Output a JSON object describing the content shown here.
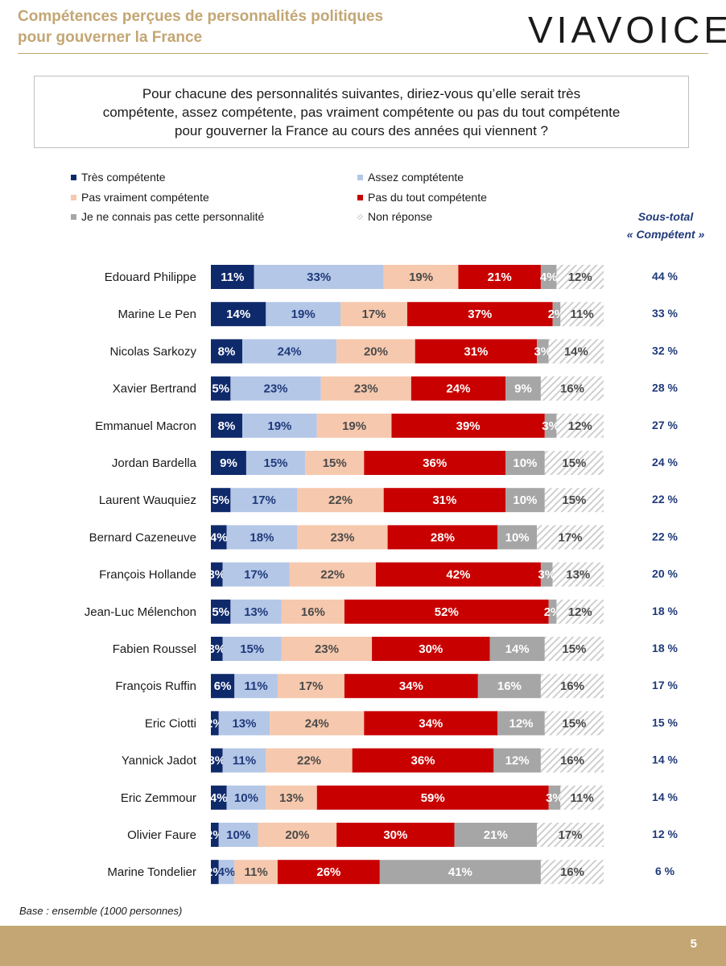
{
  "header": {
    "title_line1": "Compétences perçues de personnalités politiques",
    "title_line2": "pour gouverner la France",
    "logo_text": "VIAVOICE"
  },
  "question": {
    "line1": "Pour chacune des personnalités suivantes, diriez-vous qu’elle serait très",
    "line2": "compétente, assez compétente, pas vraiment compétente ou pas du tout compétente",
    "line3": "pour gouverner la France au cours des années qui viennent ?"
  },
  "subtotal_header": {
    "line1": "Sous-total",
    "line2": "« Compétent »"
  },
  "footer": {
    "base_note": "Base : ensemble (1000 personnes)",
    "page_number": "5"
  },
  "colors": {
    "tres": "#0f2a6b",
    "assez": "#b4c7e7",
    "pas_vraiment": "#f6c8ad",
    "pas_du_tout": "#c80000",
    "inconnu": "#a6a6a6",
    "non_reponse_hatch": "#c8c8c8",
    "accent_gold": "#c3a673",
    "subtotal_blue": "#1f3a7a"
  },
  "chart_data": {
    "type": "bar",
    "orientation": "horizontal",
    "stacked": true,
    "legend": [
      {
        "name": "Très compétente",
        "color": "#0f2a6b"
      },
      {
        "name": "Assez comptétente",
        "color": "#b4c7e7"
      },
      {
        "name": "Pas vraiment compétente",
        "color": "#f6c8ad"
      },
      {
        "name": "Pas du tout compétente",
        "color": "#c80000"
      },
      {
        "name": "Je ne connais pas cette personnalité",
        "color": "#a6a6a6"
      },
      {
        "name": "Non réponse",
        "color": "hatched"
      }
    ],
    "categories": [
      "Edouard Philippe",
      "Marine Le Pen",
      "Nicolas Sarkozy",
      "Xavier Bertrand",
      "Emmanuel Macron",
      "Jordan Bardella",
      "Laurent Wauquiez",
      "Bernard Cazeneuve",
      "François Hollande",
      "Jean-Luc Mélenchon",
      "Fabien Roussel",
      "François Ruffin",
      "Eric Ciotti",
      "Yannick Jadot",
      "Eric Zemmour",
      "Olivier Faure",
      "Marine Tondelier"
    ],
    "series": [
      {
        "name": "Très compétente",
        "values": [
          11,
          14,
          8,
          5,
          8,
          9,
          5,
          4,
          3,
          5,
          3,
          6,
          2,
          3,
          4,
          2,
          2
        ]
      },
      {
        "name": "Assez comptétente",
        "values": [
          33,
          19,
          24,
          23,
          19,
          15,
          17,
          18,
          17,
          13,
          15,
          11,
          13,
          11,
          10,
          10,
          4
        ]
      },
      {
        "name": "Pas vraiment compétente",
        "values": [
          19,
          17,
          20,
          23,
          19,
          15,
          22,
          23,
          22,
          16,
          23,
          17,
          24,
          22,
          13,
          20,
          11
        ]
      },
      {
        "name": "Pas du tout compétente",
        "values": [
          21,
          37,
          31,
          24,
          39,
          36,
          31,
          28,
          42,
          52,
          30,
          34,
          34,
          36,
          59,
          30,
          26
        ]
      },
      {
        "name": "Je ne connais pas cette personnalité",
        "values": [
          4,
          2,
          3,
          9,
          3,
          10,
          10,
          10,
          3,
          2,
          14,
          16,
          12,
          12,
          3,
          21,
          41
        ]
      },
      {
        "name": "Non réponse",
        "values": [
          12,
          11,
          14,
          16,
          12,
          15,
          15,
          17,
          13,
          12,
          15,
          16,
          15,
          16,
          11,
          17,
          16
        ]
      }
    ],
    "subtotal_competent": [
      "44 %",
      "33 %",
      "32 %",
      "28 %",
      "27 %",
      "24 %",
      "22 %",
      "22 %",
      "20 %",
      "18 %",
      "18 %",
      "17 %",
      "15 %",
      "14 %",
      "14 %",
      "12 %",
      "6 %"
    ]
  }
}
